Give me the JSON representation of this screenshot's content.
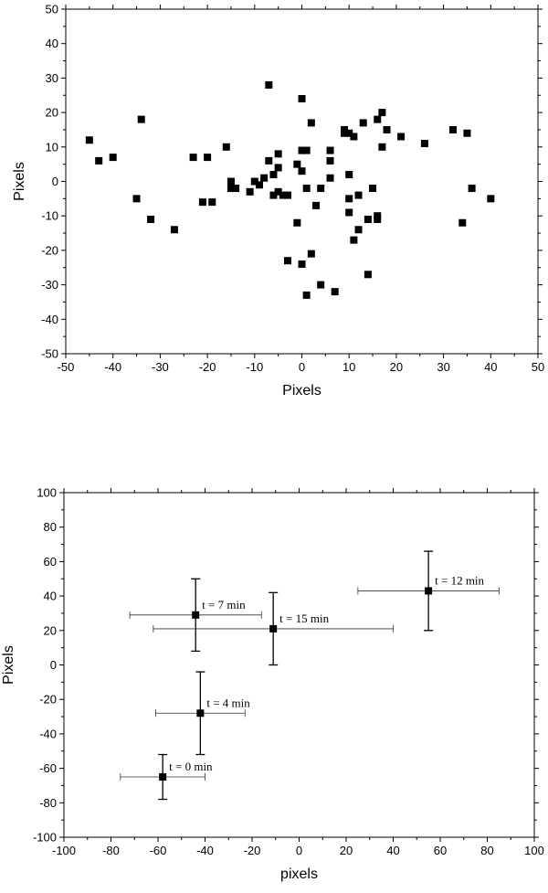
{
  "chart_data": [
    {
      "type": "scatter",
      "title": "",
      "xlabel": "Pixels",
      "ylabel": "Pixels",
      "xlim": [
        -50,
        50
      ],
      "ylim": [
        -50,
        50
      ],
      "xticks": [
        "-50",
        "-40",
        "-30",
        "-20",
        "-10",
        "0",
        "10",
        "20",
        "30",
        "40",
        "50"
      ],
      "yticks": [
        "50",
        "40",
        "30",
        "20",
        "10",
        "0",
        "-10",
        "-20",
        "-30",
        "-40",
        "-50"
      ],
      "grid": false,
      "marker": "square",
      "color": "#000000",
      "points": [
        [
          -45,
          12
        ],
        [
          -43,
          6
        ],
        [
          -40,
          7
        ],
        [
          -35,
          -5
        ],
        [
          -34,
          18
        ],
        [
          -32,
          -11
        ],
        [
          -27,
          -14
        ],
        [
          -23,
          7
        ],
        [
          -21,
          -6
        ],
        [
          -20,
          7
        ],
        [
          -19,
          -6
        ],
        [
          -16,
          10
        ],
        [
          -15,
          0
        ],
        [
          -15,
          -2
        ],
        [
          -14,
          -2
        ],
        [
          -11,
          -3
        ],
        [
          -10,
          0
        ],
        [
          -9,
          -1
        ],
        [
          -8,
          1
        ],
        [
          -7,
          28
        ],
        [
          -7,
          6
        ],
        [
          -6,
          2
        ],
        [
          -6,
          -4
        ],
        [
          -5,
          8
        ],
        [
          -5,
          4
        ],
        [
          -5,
          -3
        ],
        [
          -4,
          -4
        ],
        [
          -3,
          -4
        ],
        [
          -3,
          -23
        ],
        [
          -1,
          5
        ],
        [
          -1,
          -12
        ],
        [
          0,
          24
        ],
        [
          0,
          9
        ],
        [
          0,
          3
        ],
        [
          0,
          -24
        ],
        [
          1,
          9
        ],
        [
          1,
          -2
        ],
        [
          1,
          -33
        ],
        [
          2,
          17
        ],
        [
          2,
          -21
        ],
        [
          3,
          -7
        ],
        [
          4,
          -2
        ],
        [
          4,
          -30
        ],
        [
          6,
          9
        ],
        [
          6,
          6
        ],
        [
          6,
          1
        ],
        [
          7,
          -32
        ],
        [
          9,
          15
        ],
        [
          9,
          14
        ],
        [
          10,
          14
        ],
        [
          10,
          2
        ],
        [
          10,
          -5
        ],
        [
          10,
          -9
        ],
        [
          11,
          13
        ],
        [
          11,
          -17
        ],
        [
          12,
          -4
        ],
        [
          12,
          -14
        ],
        [
          13,
          17
        ],
        [
          14,
          -11
        ],
        [
          14,
          -27
        ],
        [
          15,
          -2
        ],
        [
          16,
          18
        ],
        [
          16,
          -10
        ],
        [
          16,
          -11
        ],
        [
          17,
          20
        ],
        [
          17,
          10
        ],
        [
          18,
          15
        ],
        [
          21,
          13
        ],
        [
          26,
          11
        ],
        [
          32,
          15
        ],
        [
          34,
          -12
        ],
        [
          35,
          14
        ],
        [
          36,
          -2
        ],
        [
          40,
          -5
        ]
      ]
    },
    {
      "type": "scatter",
      "title": "",
      "xlabel": "pixels",
      "ylabel": "Pixels",
      "xlim": [
        -100,
        100
      ],
      "ylim": [
        -100,
        100
      ],
      "xticks": [
        "-100",
        "-80",
        "-60",
        "-40",
        "-20",
        "0",
        "20",
        "40",
        "60",
        "80",
        "100"
      ],
      "yticks": [
        "100",
        "80",
        "60",
        "40",
        "20",
        "0",
        "-20",
        "-40",
        "-60",
        "-80",
        "-100"
      ],
      "grid": false,
      "marker": "square",
      "color": "#000000",
      "points": [
        {
          "x": -58,
          "y": -65,
          "xerr": 18,
          "yerr": 13,
          "label": "t = 0 min"
        },
        {
          "x": -42,
          "y": -28,
          "xerr": 19,
          "yerr": 24,
          "label": "t = 4 min"
        },
        {
          "x": -44,
          "y": 29,
          "xerr": 28,
          "yerr": 21,
          "label": "t = 7 min"
        },
        {
          "x": 55,
          "y": 43,
          "xerr": 30,
          "yerr": 23,
          "label": "t = 12 min"
        },
        {
          "x": -11,
          "y": 21,
          "xerr": 51,
          "yerr": 21,
          "label": "t = 15 min"
        }
      ]
    }
  ]
}
